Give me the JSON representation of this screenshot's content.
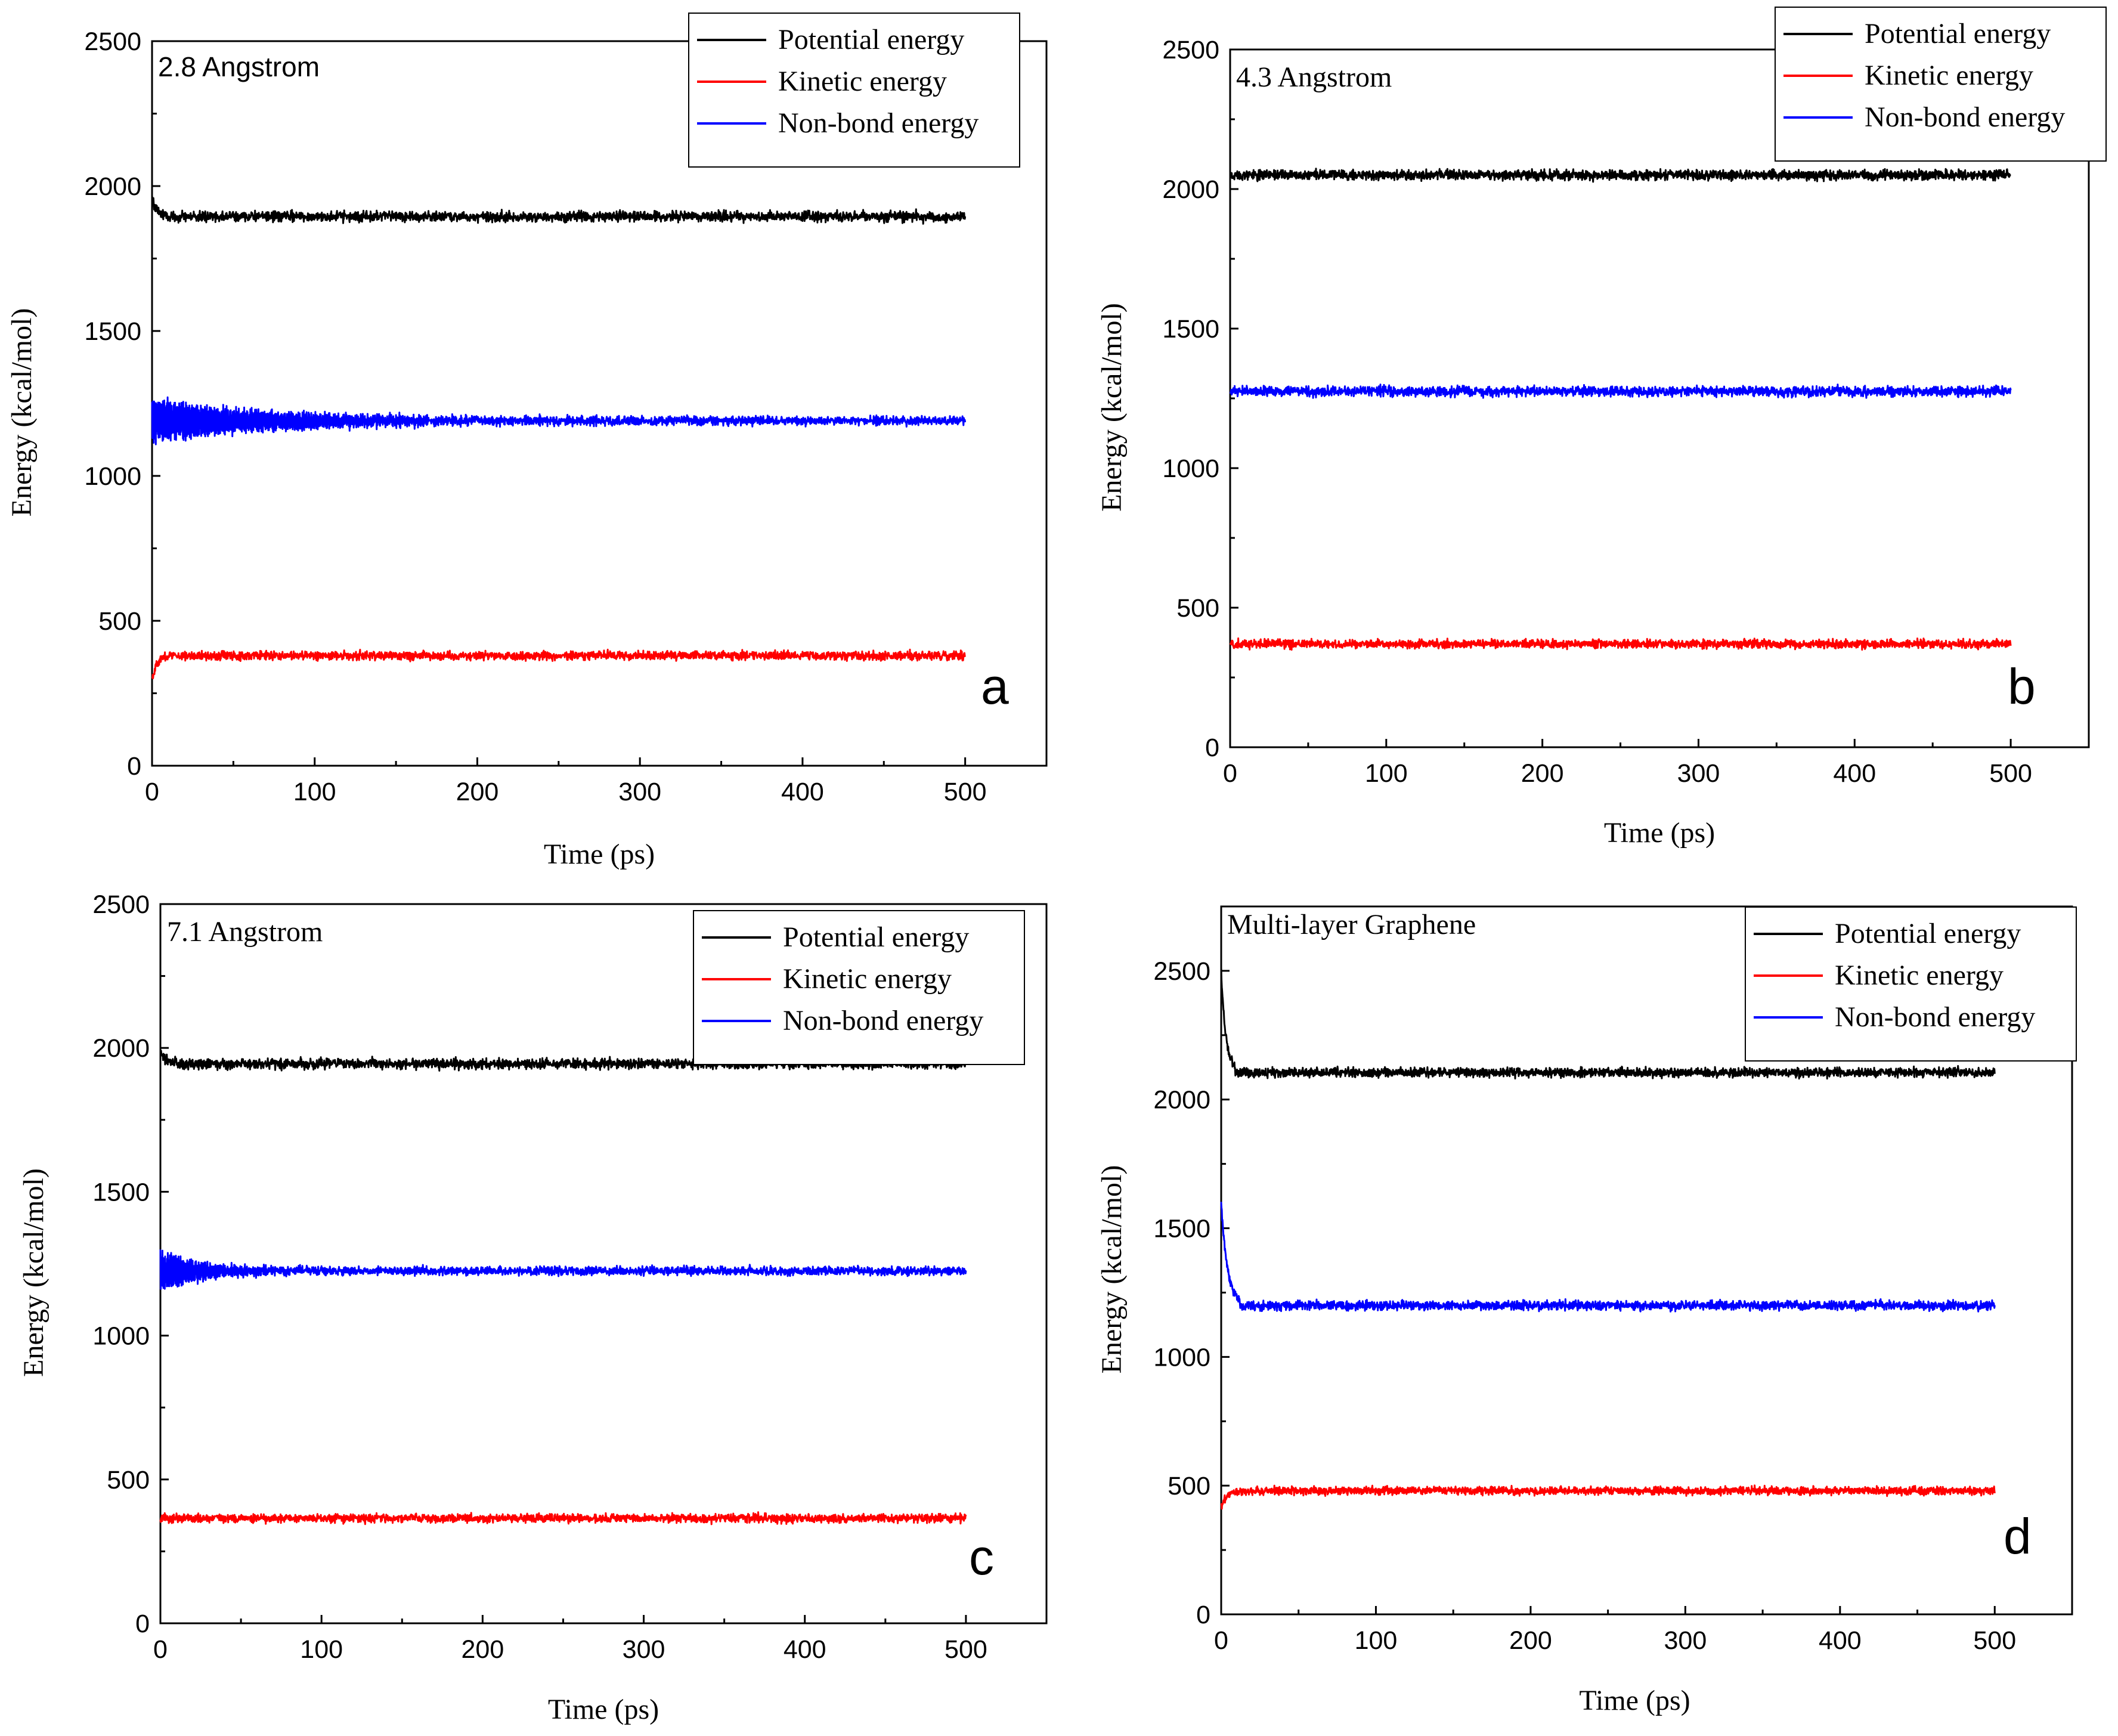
{
  "figure": {
    "colors": {
      "potential": "#000000",
      "kinetic": "#ff0000",
      "nonbond": "#0000ff"
    }
  },
  "chart_data": [
    {
      "panel": "a",
      "type": "line",
      "title": "2.8 Angstrom",
      "xlabel": "Time (ps)",
      "ylabel": "Energy (kcal/mol)",
      "xlim": [
        0,
        550
      ],
      "ylim": [
        0,
        2500
      ],
      "xticks": [
        "0",
        "100",
        "200",
        "300",
        "400",
        "500"
      ],
      "yticks": [
        "0",
        "500",
        "1000",
        "1500",
        "2000",
        "2500"
      ],
      "legend": [
        "Potential energy",
        "Kinetic energy",
        "Non-bond energy"
      ],
      "legend_position": "top-right",
      "series": [
        {
          "name": "Potential energy",
          "x": [
            0,
            500
          ],
          "mean": 1895,
          "noise": 14,
          "start": 1960,
          "settle_ps": 3,
          "color": "#000000"
        },
        {
          "name": "Kinetic energy",
          "x": [
            0,
            500
          ],
          "mean": 380,
          "noise": 12,
          "start": 300,
          "settle_ps": 3,
          "color": "#ff0000"
        },
        {
          "name": "Non-bond energy",
          "x": [
            0,
            500
          ],
          "mean": 1190,
          "noise": 12,
          "start": 1190,
          "osc_amp": 75,
          "osc_decay_ps": 80,
          "color": "#0000ff"
        }
      ]
    },
    {
      "panel": "b",
      "type": "line",
      "title": "4.3 Angstrom",
      "xlabel": "Time (ps)",
      "ylabel": "Energy (kcal/mol)",
      "xlim": [
        0,
        550
      ],
      "ylim": [
        0,
        2500
      ],
      "xticks": [
        "0",
        "100",
        "200",
        "300",
        "400",
        "500"
      ],
      "yticks": [
        "0",
        "500",
        "1000",
        "1500",
        "2000",
        "2500"
      ],
      "legend": [
        "Potential energy",
        "Kinetic energy",
        "Non-bond energy"
      ],
      "legend_position": "top-right",
      "series": [
        {
          "name": "Potential energy",
          "x": [
            0,
            500
          ],
          "mean": 2050,
          "noise": 14,
          "start": 2050,
          "settle_ps": 1,
          "color": "#000000"
        },
        {
          "name": "Kinetic energy",
          "x": [
            0,
            500
          ],
          "mean": 370,
          "noise": 12,
          "start": 370,
          "settle_ps": 1,
          "color": "#ff0000"
        },
        {
          "name": "Non-bond energy",
          "x": [
            0,
            500
          ],
          "mean": 1275,
          "noise": 14,
          "start": 1275,
          "settle_ps": 1,
          "color": "#0000ff"
        }
      ]
    },
    {
      "panel": "c",
      "type": "line",
      "title": "7.1 Angstrom",
      "xlabel": "Time (ps)",
      "ylabel": "Energy (kcal/mol)",
      "xlim": [
        0,
        550
      ],
      "ylim": [
        0,
        2500
      ],
      "xticks": [
        "0",
        "100",
        "200",
        "300",
        "400",
        "500"
      ],
      "yticks": [
        "0",
        "500",
        "1000",
        "1500",
        "2000",
        "2500"
      ],
      "legend": [
        "Potential energy",
        "Kinetic energy",
        "Non-bond energy"
      ],
      "legend_position": "top-right",
      "series": [
        {
          "name": "Potential energy",
          "x": [
            0,
            500
          ],
          "mean": 1945,
          "noise": 14,
          "start": 1990,
          "settle_ps": 3,
          "color": "#000000"
        },
        {
          "name": "Kinetic energy",
          "x": [
            0,
            500
          ],
          "mean": 365,
          "noise": 12,
          "start": 365,
          "settle_ps": 1,
          "color": "#ff0000"
        },
        {
          "name": "Non-bond energy",
          "x": [
            0,
            500
          ],
          "mean": 1225,
          "noise": 12,
          "start": 1225,
          "osc_amp": 75,
          "osc_decay_ps": 25,
          "color": "#0000ff"
        }
      ]
    },
    {
      "panel": "d",
      "type": "line",
      "title": "Multi-layer Graphene",
      "xlabel": "Time (ps)",
      "ylabel": "Energy (kcal/mol)",
      "xlim": [
        0,
        550
      ],
      "ylim": [
        0,
        2750
      ],
      "xticks": [
        "0",
        "100",
        "200",
        "300",
        "400",
        "500"
      ],
      "yticks": [
        "0",
        "500",
        "1000",
        "1500",
        "2000",
        "2500"
      ],
      "legend": [
        "Potential energy",
        "Kinetic energy",
        "Non-bond energy"
      ],
      "legend_position": "top-right",
      "series": [
        {
          "name": "Potential energy",
          "x": [
            0,
            500
          ],
          "mean": 2105,
          "noise": 14,
          "start": 2500,
          "settle_ps": 3,
          "color": "#000000"
        },
        {
          "name": "Kinetic energy",
          "x": [
            0,
            500
          ],
          "mean": 480,
          "noise": 12,
          "start": 420,
          "settle_ps": 4,
          "color": "#ff0000"
        },
        {
          "name": "Non-bond energy",
          "x": [
            0,
            500
          ],
          "mean": 1200,
          "noise": 14,
          "start": 1600,
          "settle_ps": 4,
          "color": "#0000ff"
        }
      ]
    }
  ]
}
